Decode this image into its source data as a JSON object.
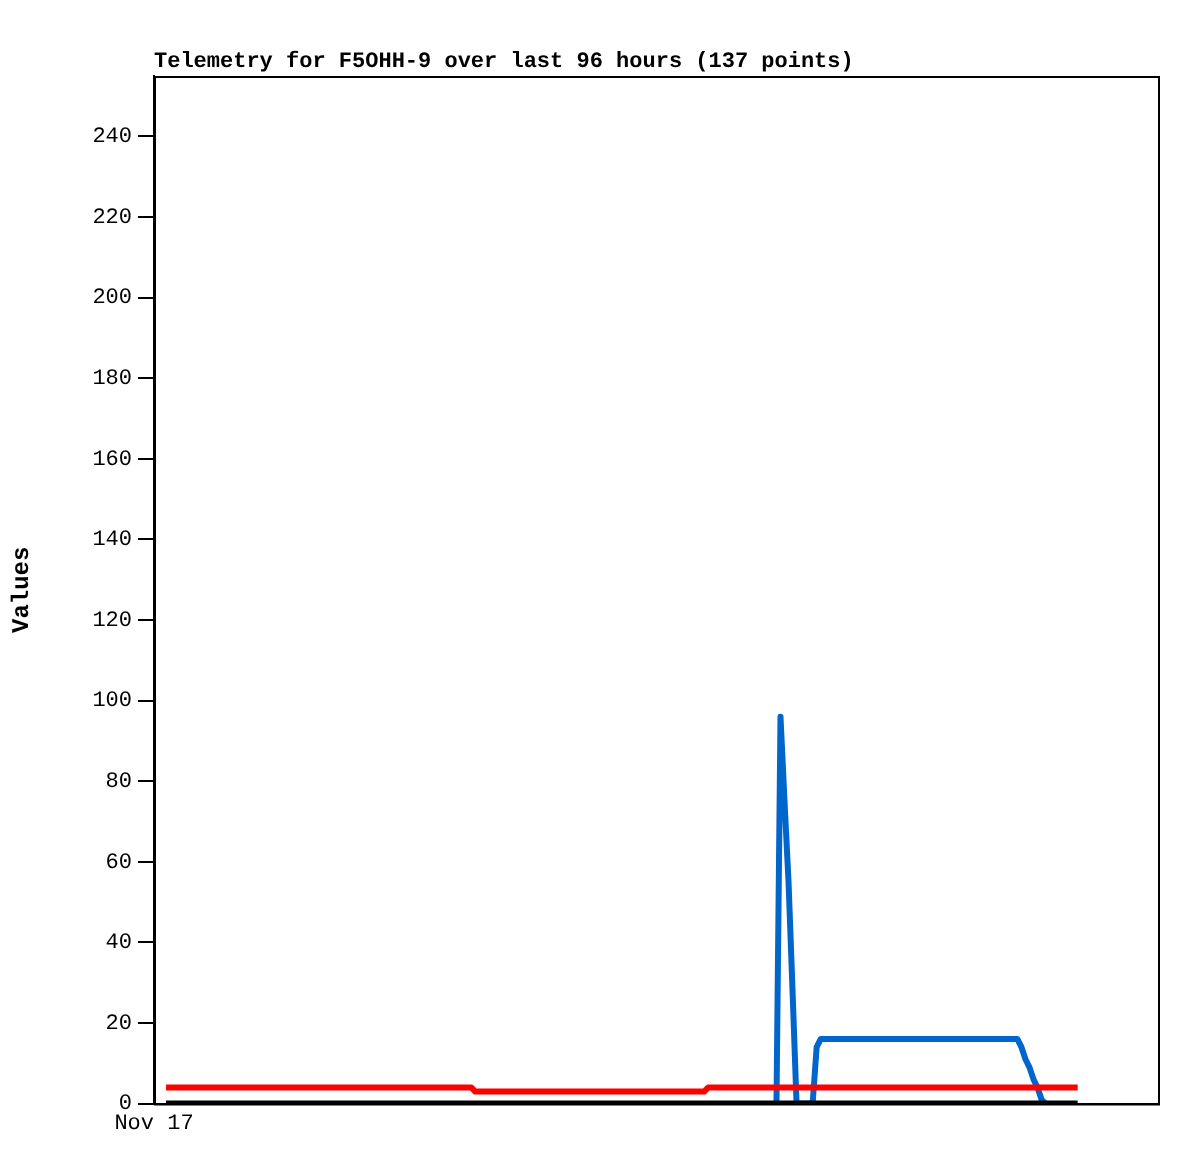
{
  "chart_data": {
    "type": "line",
    "title": "Telemetry for F5OHH-9 over last 96 hours (137 points)",
    "ylabel": "Values",
    "categories": [
      "Nov 17",
      null,
      null,
      null,
      null,
      null,
      null,
      null,
      null,
      null,
      null,
      null,
      null,
      null,
      null,
      null,
      null,
      null,
      null,
      null,
      null,
      null,
      null,
      null,
      null,
      null,
      null,
      null,
      null,
      null,
      null,
      null,
      null,
      null,
      null,
      null,
      null,
      null,
      null,
      null,
      null,
      null,
      null,
      null,
      null,
      null,
      null,
      null,
      null,
      null,
      null,
      null,
      null,
      null,
      null,
      null,
      null,
      null,
      null,
      null,
      null,
      null,
      null,
      null,
      null,
      null,
      null,
      null,
      null,
      null,
      null,
      null,
      null,
      null,
      null,
      null,
      null,
      null,
      null,
      null,
      null,
      null,
      null,
      null,
      null,
      null,
      null,
      null,
      null,
      null,
      null,
      null,
      null,
      null,
      null,
      null,
      null,
      null,
      null,
      null,
      null,
      null,
      null,
      null,
      null,
      null,
      null,
      null,
      null,
      null,
      null,
      null,
      null,
      null,
      null,
      null,
      null,
      null,
      null,
      null,
      null,
      null,
      null,
      null,
      null,
      null,
      null,
      null,
      null,
      null,
      null,
      null,
      null,
      null,
      null,
      null,
      null,
      null,
      null,
      null,
      null,
      null,
      null,
      null,
      null,
      null,
      null,
      null,
      null,
      null,
      null,
      null,
      null,
      null,
      null,
      null,
      null,
      null,
      null,
      null,
      null,
      null,
      null,
      null,
      null,
      null,
      null,
      null,
      null,
      null,
      null,
      null,
      null,
      null,
      null,
      null,
      null,
      null,
      null,
      null,
      null,
      null,
      null,
      null,
      null,
      null,
      null,
      null,
      null,
      null,
      null,
      null,
      null,
      null,
      null,
      null,
      null,
      null,
      null,
      null,
      null,
      null,
      null,
      null,
      null,
      null,
      null,
      null,
      null,
      null,
      null,
      null,
      null,
      null,
      null,
      null,
      null,
      null,
      null,
      null,
      null,
      null,
      null,
      null,
      null,
      null,
      null,
      null,
      null,
      null,
      null,
      null,
      null,
      null,
      null,
      null,
      null,
      null,
      null,
      null,
      null,
      null,
      null,
      null,
      null,
      null,
      null,
      null,
      null,
      null,
      null
    ],
    "ylim": [
      0,
      255
    ],
    "yticks": [
      0,
      20,
      40,
      60,
      80,
      100,
      120,
      140,
      160,
      180,
      200,
      220,
      240
    ],
    "legend": false,
    "marker": "none",
    "line_style": "solid",
    "series": [
      {
        "color": "#ff0000",
        "values": [
          null,
          null,
          null,
          4,
          4,
          4,
          4,
          4,
          4,
          4,
          4,
          4,
          4,
          4,
          4,
          4,
          4,
          4,
          4,
          4,
          4,
          4,
          4,
          4,
          4,
          4,
          4,
          4,
          4,
          4,
          4,
          4,
          4,
          4,
          4,
          4,
          4,
          4,
          4,
          4,
          4,
          4,
          4,
          4,
          4,
          4,
          4,
          4,
          4,
          4,
          4,
          4,
          4,
          4,
          4,
          4,
          4,
          4,
          4,
          4,
          4,
          4,
          4,
          4,
          4,
          4,
          4,
          4,
          4,
          4,
          4,
          4,
          4,
          4,
          4,
          4,
          4,
          4,
          4,
          4,
          3,
          3,
          3,
          3,
          3,
          3,
          3,
          3,
          3,
          3,
          3,
          3,
          3,
          3,
          3,
          3,
          3,
          3,
          3,
          3,
          3,
          3,
          3,
          3,
          3,
          3,
          3,
          3,
          3,
          3,
          3,
          3,
          3,
          3,
          3,
          3,
          3,
          3,
          3,
          3,
          3,
          3,
          3,
          3,
          3,
          3,
          3,
          3,
          3,
          3,
          3,
          3,
          3,
          3,
          3,
          3,
          3,
          3,
          4,
          4,
          4,
          4,
          4,
          4,
          4,
          4,
          4,
          4,
          4,
          4,
          4,
          4,
          4,
          4,
          4,
          4,
          4,
          4,
          4,
          4,
          4,
          4,
          4,
          4,
          4,
          4,
          4,
          4,
          4,
          4,
          4,
          4,
          4,
          4,
          4,
          4,
          4,
          4,
          4,
          4,
          4,
          4,
          4,
          4,
          4,
          4,
          4,
          4,
          4,
          4,
          4,
          4,
          4,
          4,
          4,
          4,
          4,
          4,
          4,
          4,
          4,
          4,
          4,
          4,
          4,
          4,
          4,
          4,
          4,
          4,
          4,
          4,
          4,
          4,
          4,
          4,
          4,
          4,
          4,
          4,
          4,
          4,
          4,
          4,
          4,
          4,
          4,
          4,
          4,
          4,
          4,
          null,
          null,
          null,
          null,
          null,
          null,
          null,
          null,
          null,
          null,
          null,
          null,
          null,
          null,
          null,
          null,
          null,
          null,
          null,
          null
        ]
      },
      {
        "color": "#000000",
        "values": [
          null,
          null,
          null,
          0,
          0,
          0,
          0,
          0,
          0,
          0,
          0,
          0,
          0,
          0,
          0,
          0,
          0,
          0,
          0,
          0,
          0,
          0,
          0,
          0,
          0,
          0,
          0,
          0,
          0,
          0,
          0,
          0,
          0,
          0,
          0,
          0,
          0,
          0,
          0,
          0,
          0,
          0,
          0,
          0,
          0,
          0,
          0,
          0,
          0,
          0,
          0,
          0,
          0,
          0,
          0,
          0,
          0,
          0,
          0,
          0,
          0,
          0,
          0,
          0,
          0,
          0,
          0,
          0,
          0,
          0,
          0,
          0,
          0,
          0,
          0,
          0,
          0,
          0,
          0,
          0,
          0,
          0,
          0,
          0,
          0,
          0,
          0,
          0,
          0,
          0,
          0,
          0,
          0,
          0,
          0,
          0,
          0,
          0,
          0,
          0,
          0,
          0,
          0,
          0,
          0,
          0,
          0,
          0,
          0,
          0,
          0,
          0,
          0,
          0,
          0,
          0,
          0,
          0,
          0,
          0,
          0,
          0,
          0,
          0,
          0,
          0,
          0,
          0,
          0,
          0,
          0,
          0,
          0,
          0,
          0,
          0,
          0,
          0,
          0,
          0,
          0,
          0,
          0,
          0,
          0,
          0,
          0,
          0,
          0,
          0,
          0,
          0,
          0,
          0,
          0,
          0,
          0,
          0,
          0,
          0,
          0,
          0,
          0,
          0,
          0,
          0,
          0,
          0,
          0,
          0,
          0,
          0,
          0,
          0,
          0,
          0,
          0,
          0,
          0,
          0,
          0,
          0,
          0,
          0,
          0,
          0,
          0,
          0,
          0,
          0,
          0,
          0,
          0,
          0,
          0,
          0,
          0,
          0,
          0,
          0,
          0,
          0,
          0,
          0,
          0,
          0,
          0,
          0,
          0,
          0,
          0,
          0,
          0,
          0,
          0,
          0,
          0,
          0,
          0,
          0,
          0,
          0,
          0,
          0,
          0,
          0,
          0,
          0,
          0,
          0,
          0,
          null,
          null,
          null,
          null,
          null,
          null,
          null,
          null,
          null,
          null,
          null,
          null,
          null,
          null,
          null,
          null,
          null,
          null,
          null,
          null
        ]
      },
      {
        "color": "#0066cc",
        "values": [
          null,
          null,
          null,
          null,
          null,
          null,
          null,
          null,
          null,
          null,
          null,
          null,
          null,
          null,
          null,
          null,
          null,
          null,
          null,
          null,
          null,
          null,
          null,
          null,
          null,
          null,
          null,
          null,
          null,
          null,
          null,
          null,
          null,
          null,
          null,
          null,
          null,
          null,
          null,
          null,
          null,
          null,
          null,
          null,
          null,
          null,
          null,
          null,
          null,
          null,
          null,
          null,
          null,
          null,
          null,
          null,
          null,
          null,
          null,
          null,
          null,
          null,
          null,
          null,
          null,
          null,
          null,
          null,
          null,
          null,
          null,
          null,
          null,
          null,
          null,
          null,
          null,
          null,
          null,
          null,
          null,
          null,
          null,
          null,
          null,
          null,
          null,
          null,
          null,
          null,
          null,
          null,
          null,
          null,
          null,
          null,
          null,
          null,
          null,
          null,
          null,
          null,
          null,
          null,
          null,
          null,
          null,
          null,
          null,
          null,
          null,
          null,
          null,
          null,
          null,
          null,
          null,
          null,
          null,
          null,
          null,
          null,
          null,
          null,
          null,
          null,
          null,
          null,
          null,
          null,
          null,
          null,
          null,
          null,
          null,
          null,
          null,
          null,
          null,
          null,
          null,
          null,
          null,
          null,
          null,
          null,
          null,
          null,
          null,
          null,
          null,
          null,
          null,
          null,
          null,
          0,
          96,
          75,
          55,
          28,
          0,
          0,
          0,
          0,
          0,
          14,
          16,
          16,
          16,
          16,
          16,
          16,
          16,
          16,
          16,
          16,
          16,
          16,
          16,
          16,
          16,
          16,
          16,
          16,
          16,
          16,
          16,
          16,
          16,
          16,
          16,
          16,
          16,
          16,
          16,
          16,
          16,
          16,
          16,
          16,
          16,
          16,
          16,
          16,
          16,
          16,
          16,
          16,
          16,
          16,
          16,
          16,
          16,
          16,
          16,
          16,
          14,
          11,
          9,
          6,
          4,
          1,
          0,
          null,
          null,
          null,
          null,
          null,
          null,
          null,
          null,
          null,
          null,
          null,
          null,
          null,
          null,
          null,
          null,
          null,
          null,
          null,
          null,
          null,
          null,
          null,
          null,
          null,
          null,
          null,
          null
        ]
      }
    ]
  }
}
